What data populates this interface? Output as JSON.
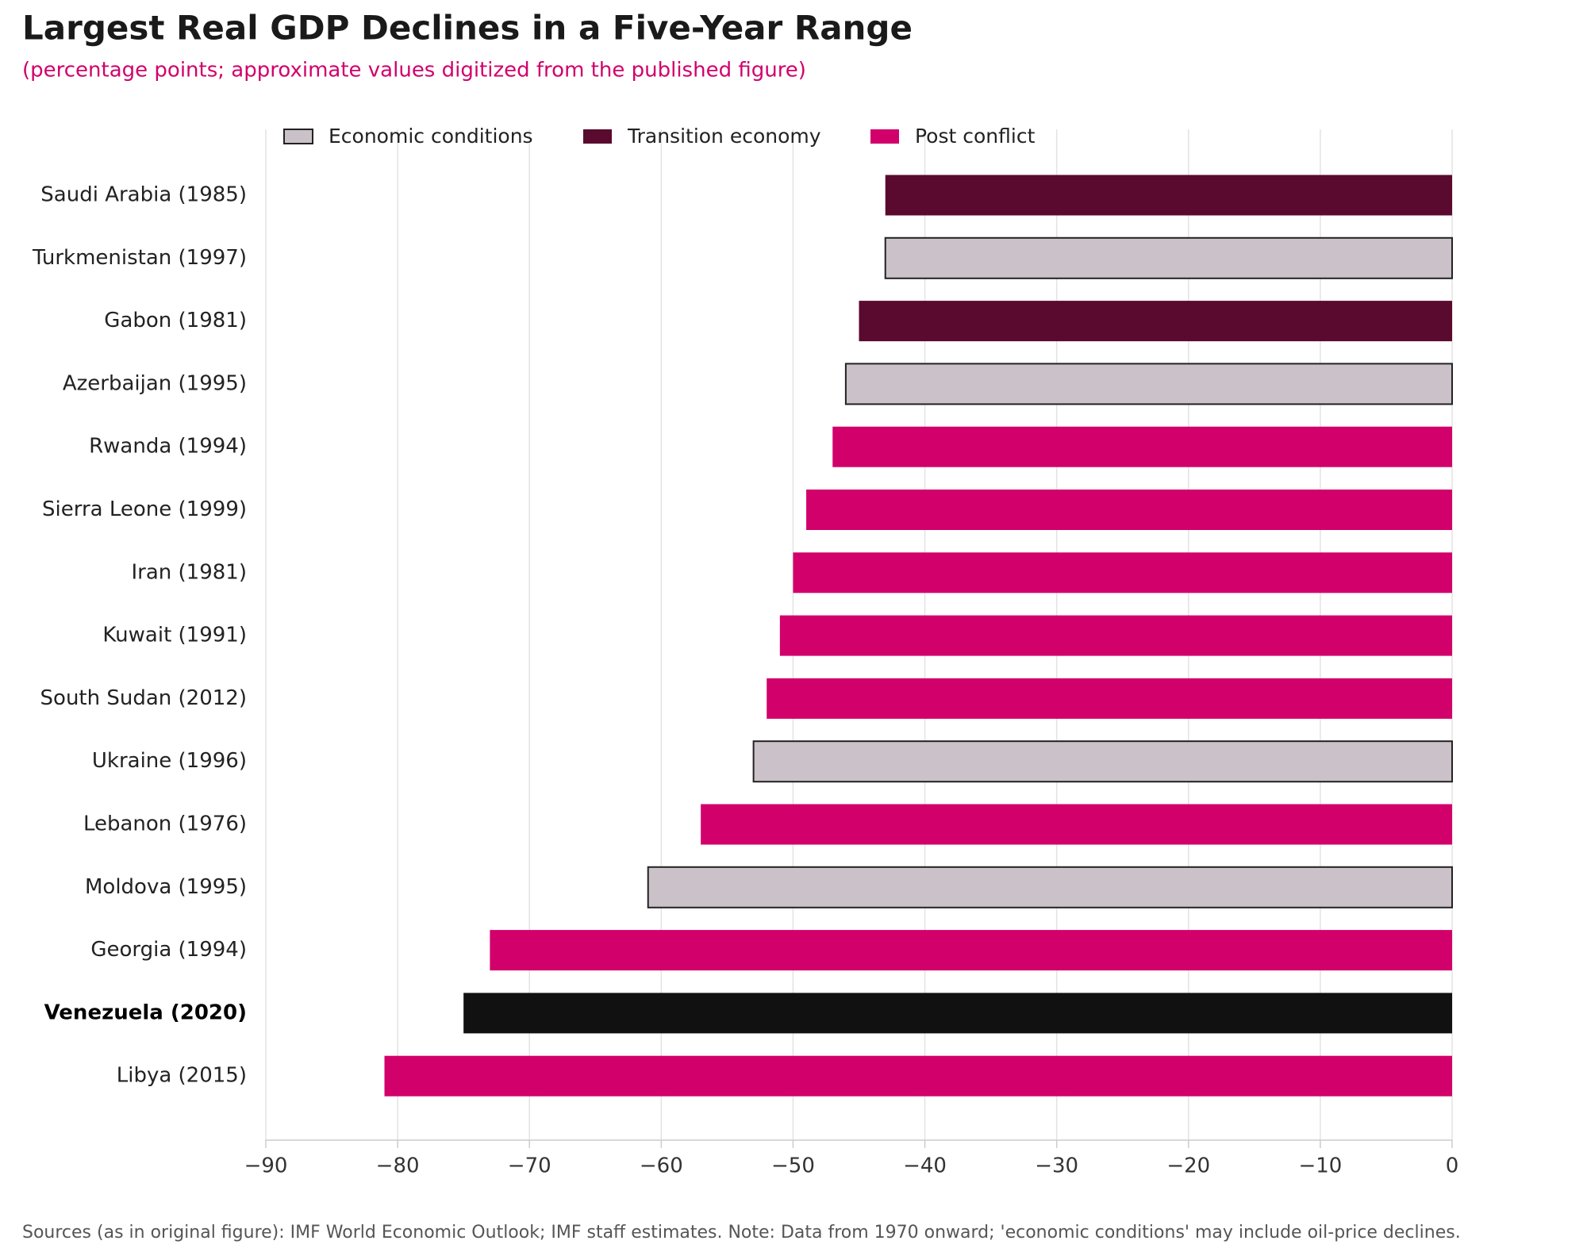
{
  "chart_data": {
    "type": "bar",
    "orientation": "horizontal",
    "title": "Largest Real GDP Declines in a Five-Year Range",
    "subtitle": "(percentage points; approximate values digitized from the published figure)",
    "footnote": "Sources (as in original figure): IMF World Economic Outlook; IMF staff estimates. Note: Data from 1970 onward; 'economic conditions' may include oil-price declines.",
    "categories": [
      "Saudi Arabia (1985)",
      "Turkmenistan (1997)",
      "Gabon (1981)",
      "Azerbaijan (1995)",
      "Rwanda (1994)",
      "Sierra Leone (1999)",
      "Iran (1981)",
      "Kuwait (1991)",
      "South Sudan (2012)",
      "Ukraine (1996)",
      "Lebanon (1976)",
      "Moldova (1995)",
      "Georgia (1994)",
      "Venezuela (2020)",
      "Libya (2015)"
    ],
    "values": [
      -43,
      -43,
      -45,
      -46,
      -47,
      -49,
      -50,
      -51,
      -52,
      -53,
      -57,
      -61,
      -73,
      -75,
      -81
    ],
    "colors": [
      "#5a0a2e",
      "#cbc1c9",
      "#5a0a2e",
      "#cbc1c9",
      "#d1006b",
      "#d1006b",
      "#d1006b",
      "#d1006b",
      "#d1006b",
      "#cbc1c9",
      "#d1006b",
      "#cbc1c9",
      "#d1006b",
      "#111111",
      "#d1006b"
    ],
    "edgecolor": {
      "#cbc1c9": "#222222"
    },
    "highlight": 13,
    "legend": [
      {
        "name": "Economic conditions",
        "color": "#cbc1c9"
      },
      {
        "name": "Transition economy",
        "color": "#5a0a2e"
      },
      {
        "name": "Post conflict",
        "color": "#d1006b"
      }
    ],
    "xlim": [
      -90,
      0
    ],
    "xticks": [
      {
        "value": -90,
        "label": "−90"
      },
      {
        "value": -80,
        "label": "−80"
      },
      {
        "value": -70,
        "label": "−70"
      },
      {
        "value": -60,
        "label": "−60"
      },
      {
        "value": -50,
        "label": "−50"
      },
      {
        "value": -40,
        "label": "−40"
      },
      {
        "value": -30,
        "label": "−30"
      },
      {
        "value": -20,
        "label": "−20"
      },
      {
        "value": -10,
        "label": "−10"
      },
      0
    ],
    "grid": true
  }
}
